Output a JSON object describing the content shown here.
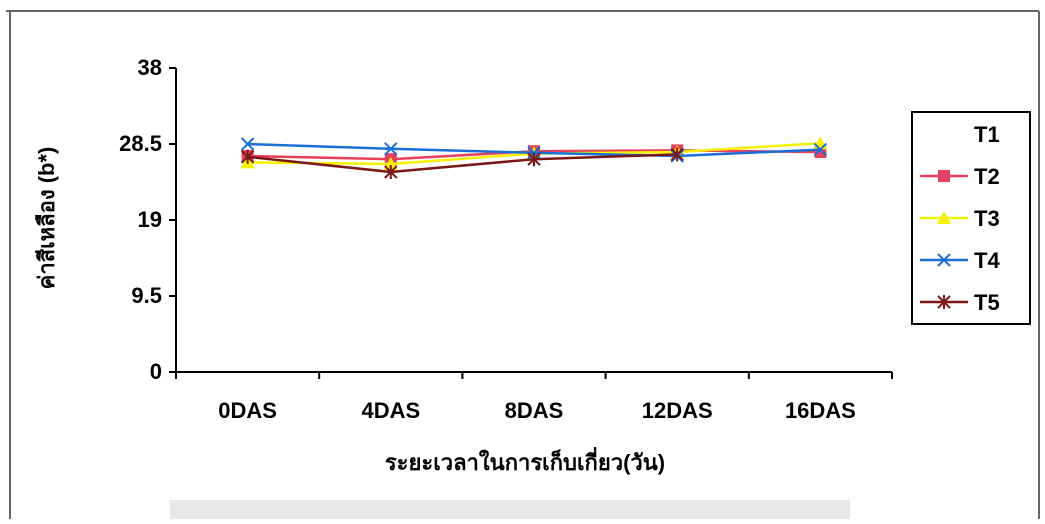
{
  "chart_data": {
    "type": "line",
    "title": "",
    "xlabel": "ระยะเวลาในการเก็บเกี่ยว(วัน)",
    "ylabel": "ค่าสีเหลือง  (b*)",
    "categories": [
      "0DAS",
      "4DAS",
      "8DAS",
      "12DAS",
      "16DAS"
    ],
    "ylim": [
      0,
      38
    ],
    "yticks": [
      "0",
      "9.5",
      "19",
      "28.5",
      "38"
    ],
    "grid": false,
    "legend_position": "right",
    "series": [
      {
        "name": "T1",
        "color": "#000000",
        "marker": "none",
        "values": [
          null,
          null,
          null,
          null,
          null
        ]
      },
      {
        "name": "T2",
        "color": "#e8405a",
        "marker": "square",
        "values": [
          27.0,
          26.6,
          27.6,
          27.7,
          27.5
        ]
      },
      {
        "name": "T3",
        "color": "#f5f200",
        "marker": "triangle",
        "values": [
          26.2,
          26.0,
          27.3,
          27.5,
          28.6
        ]
      },
      {
        "name": "T4",
        "color": "#1a6fd6",
        "marker": "x",
        "values": [
          28.5,
          27.9,
          27.4,
          27.0,
          27.8
        ]
      },
      {
        "name": "T5",
        "color": "#7a1818",
        "marker": "star",
        "values": [
          26.9,
          25.0,
          26.6,
          27.2,
          null
        ]
      }
    ]
  }
}
